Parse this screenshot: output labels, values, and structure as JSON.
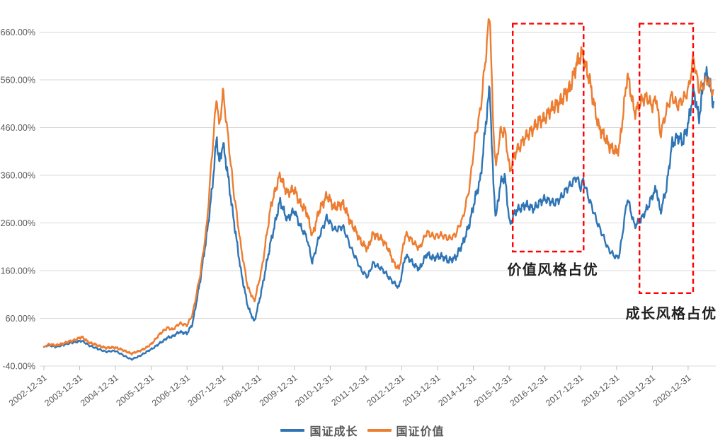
{
  "chart_data": {
    "type": "line",
    "title": "",
    "grid": true,
    "legend_position": "bottom",
    "x_axis": {
      "label": "",
      "t_unit": "years since 2002-12-31",
      "tick_positions": [
        0,
        1,
        2,
        3,
        4,
        5,
        6,
        7,
        8,
        9,
        10,
        11,
        12,
        13,
        14,
        15,
        16,
        17,
        18
      ],
      "tick_labels": [
        "2002-12-31",
        "2003-12-31",
        "2004-12-31",
        "2005-12-31",
        "2006-12-31",
        "2007-12-31",
        "2008-12-31",
        "2009-12-31",
        "2010-12-31",
        "2011-12-31",
        "2012-12-31",
        "2013-12-31",
        "2014-12-31",
        "2015-12-31",
        "2016-12-31",
        "2017-12-31",
        "2018-12-31",
        "2019-12-31",
        "2020-12-31"
      ],
      "range": [
        0,
        18.71
      ]
    },
    "y_axis": {
      "label": "",
      "unit": "%",
      "tick_values": [
        660,
        560,
        460,
        360,
        260,
        160,
        60,
        -40
      ],
      "tick_labels": [
        "660.00%",
        "560.00%",
        "460.00%",
        "360.00%",
        "260.00%",
        "160.00%",
        "60.00%",
        "-40.00%"
      ],
      "range": [
        -40,
        705
      ]
    },
    "series": [
      {
        "name": "国证成长",
        "color": "#2F75B5",
        "points": [
          [
            0,
            0
          ],
          [
            0.15,
            4
          ],
          [
            0.35,
            0
          ],
          [
            0.6,
            6
          ],
          [
            0.85,
            10
          ],
          [
            1.05,
            13
          ],
          [
            1.25,
            4
          ],
          [
            1.5,
            -4
          ],
          [
            1.75,
            -10
          ],
          [
            2.0,
            -8
          ],
          [
            2.25,
            -19
          ],
          [
            2.45,
            -26
          ],
          [
            2.65,
            -20
          ],
          [
            2.85,
            -11
          ],
          [
            3.0,
            -5
          ],
          [
            3.2,
            6
          ],
          [
            3.35,
            13
          ],
          [
            3.45,
            20
          ],
          [
            3.6,
            22
          ],
          [
            3.8,
            32
          ],
          [
            4.0,
            28
          ],
          [
            4.15,
            48
          ],
          [
            4.37,
            140
          ],
          [
            4.55,
            235
          ],
          [
            4.7,
            330
          ],
          [
            4.83,
            440
          ],
          [
            4.9,
            385
          ],
          [
            5.0,
            428
          ],
          [
            5.1,
            380
          ],
          [
            5.3,
            270
          ],
          [
            5.5,
            160
          ],
          [
            5.7,
            85
          ],
          [
            5.88,
            52
          ],
          [
            6.1,
            125
          ],
          [
            6.35,
            225
          ],
          [
            6.6,
            305
          ],
          [
            6.8,
            268
          ],
          [
            7.0,
            285
          ],
          [
            7.2,
            248
          ],
          [
            7.35,
            228
          ],
          [
            7.5,
            178
          ],
          [
            7.7,
            232
          ],
          [
            7.9,
            272
          ],
          [
            8.1,
            246
          ],
          [
            8.35,
            252
          ],
          [
            8.6,
            205
          ],
          [
            8.85,
            163
          ],
          [
            9.05,
            147
          ],
          [
            9.2,
            176
          ],
          [
            9.4,
            166
          ],
          [
            9.6,
            150
          ],
          [
            9.8,
            132
          ],
          [
            9.92,
            124
          ],
          [
            10.1,
            192
          ],
          [
            10.3,
            176
          ],
          [
            10.5,
            163
          ],
          [
            10.7,
            196
          ],
          [
            10.9,
            185
          ],
          [
            11.1,
            192
          ],
          [
            11.3,
            180
          ],
          [
            11.5,
            188
          ],
          [
            11.7,
            215
          ],
          [
            11.9,
            262
          ],
          [
            12.05,
            310
          ],
          [
            12.2,
            355
          ],
          [
            12.35,
            470
          ],
          [
            12.46,
            545
          ],
          [
            12.55,
            355
          ],
          [
            12.63,
            270
          ],
          [
            12.75,
            340
          ],
          [
            12.88,
            358
          ],
          [
            13.02,
            255
          ],
          [
            13.2,
            287
          ],
          [
            13.45,
            297
          ],
          [
            13.7,
            291
          ],
          [
            14.0,
            312
          ],
          [
            14.25,
            300
          ],
          [
            14.5,
            318
          ],
          [
            14.7,
            340
          ],
          [
            14.88,
            356
          ],
          [
            15.0,
            332
          ],
          [
            15.07,
            352
          ],
          [
            15.25,
            305
          ],
          [
            15.5,
            255
          ],
          [
            15.75,
            208
          ],
          [
            16.0,
            186
          ],
          [
            16.08,
            192
          ],
          [
            16.3,
            312
          ],
          [
            16.5,
            255
          ],
          [
            16.7,
            268
          ],
          [
            16.85,
            290
          ],
          [
            17.0,
            318
          ],
          [
            17.12,
            330
          ],
          [
            17.22,
            282
          ],
          [
            17.4,
            335
          ],
          [
            17.55,
            425
          ],
          [
            17.7,
            442
          ],
          [
            17.85,
            428
          ],
          [
            18.0,
            468
          ],
          [
            18.15,
            538
          ],
          [
            18.3,
            478
          ],
          [
            18.45,
            565
          ],
          [
            18.55,
            570
          ],
          [
            18.62,
            545
          ],
          [
            18.71,
            508
          ]
        ]
      },
      {
        "name": "国证价值",
        "color": "#ED7D31",
        "points": [
          [
            0,
            0
          ],
          [
            0.15,
            6
          ],
          [
            0.35,
            3
          ],
          [
            0.6,
            9
          ],
          [
            0.85,
            14
          ],
          [
            1.05,
            21
          ],
          [
            1.25,
            10
          ],
          [
            1.5,
            3
          ],
          [
            1.75,
            -2
          ],
          [
            2.0,
            -1
          ],
          [
            2.25,
            -8
          ],
          [
            2.45,
            -14
          ],
          [
            2.65,
            -9
          ],
          [
            2.85,
            -2
          ],
          [
            3.0,
            6
          ],
          [
            3.2,
            24
          ],
          [
            3.35,
            34
          ],
          [
            3.45,
            41
          ],
          [
            3.6,
            36
          ],
          [
            3.8,
            50
          ],
          [
            4.0,
            45
          ],
          [
            4.15,
            68
          ],
          [
            4.37,
            152
          ],
          [
            4.55,
            255
          ],
          [
            4.7,
            405
          ],
          [
            4.83,
            528
          ],
          [
            4.9,
            458
          ],
          [
            5.0,
            536
          ],
          [
            5.1,
            470
          ],
          [
            5.3,
            330
          ],
          [
            5.5,
            212
          ],
          [
            5.7,
            125
          ],
          [
            5.88,
            95
          ],
          [
            6.1,
            168
          ],
          [
            6.35,
            300
          ],
          [
            6.6,
            360
          ],
          [
            6.8,
            322
          ],
          [
            7.0,
            330
          ],
          [
            7.2,
            296
          ],
          [
            7.35,
            282
          ],
          [
            7.5,
            233
          ],
          [
            7.7,
            287
          ],
          [
            7.9,
            318
          ],
          [
            8.1,
            293
          ],
          [
            8.35,
            300
          ],
          [
            8.6,
            258
          ],
          [
            8.85,
            222
          ],
          [
            9.05,
            205
          ],
          [
            9.2,
            238
          ],
          [
            9.4,
            228
          ],
          [
            9.6,
            210
          ],
          [
            9.8,
            172
          ],
          [
            9.92,
            163
          ],
          [
            10.1,
            236
          ],
          [
            10.3,
            222
          ],
          [
            10.5,
            206
          ],
          [
            10.7,
            242
          ],
          [
            10.9,
            230
          ],
          [
            11.1,
            236
          ],
          [
            11.3,
            226
          ],
          [
            11.5,
            236
          ],
          [
            11.7,
            268
          ],
          [
            11.9,
            340
          ],
          [
            12.05,
            438
          ],
          [
            12.2,
            500
          ],
          [
            12.35,
            610
          ],
          [
            12.46,
            705
          ],
          [
            12.55,
            470
          ],
          [
            12.63,
            375
          ],
          [
            12.75,
            448
          ],
          [
            12.88,
            455
          ],
          [
            13.02,
            368
          ],
          [
            13.2,
            412
          ],
          [
            13.45,
            438
          ],
          [
            13.7,
            462
          ],
          [
            14.0,
            482
          ],
          [
            14.25,
            503
          ],
          [
            14.5,
            520
          ],
          [
            14.7,
            545
          ],
          [
            14.88,
            590
          ],
          [
            15.05,
            618
          ],
          [
            15.25,
            555
          ],
          [
            15.5,
            462
          ],
          [
            15.75,
            428
          ],
          [
            16.0,
            406
          ],
          [
            16.08,
            420
          ],
          [
            16.3,
            570
          ],
          [
            16.5,
            492
          ],
          [
            16.7,
            515
          ],
          [
            16.85,
            525
          ],
          [
            17.0,
            505
          ],
          [
            17.12,
            520
          ],
          [
            17.22,
            447
          ],
          [
            17.4,
            496
          ],
          [
            17.55,
            528
          ],
          [
            17.7,
            506
          ],
          [
            17.85,
            516
          ],
          [
            18.0,
            540
          ],
          [
            18.15,
            604
          ],
          [
            18.3,
            542
          ],
          [
            18.45,
            552
          ],
          [
            18.55,
            558
          ],
          [
            18.62,
            546
          ],
          [
            18.71,
            535
          ]
        ]
      }
    ],
    "annotations": [
      {
        "text": "价值风格占优",
        "t": 14.22,
        "value": 164,
        "box": {
          "t0": 13.1,
          "t1": 15.08,
          "v0": 200,
          "v1": 678
        }
      },
      {
        "text": "成长风格占优",
        "t": 17.53,
        "value": 73,
        "box": {
          "t0": 16.64,
          "t1": 18.14,
          "v0": 113,
          "v1": 678
        }
      }
    ],
    "colors": {
      "grid": "#D9D9D9",
      "tick": "#BFBFBF",
      "axis_text": "#595959",
      "annotation_text": "#1F1F1F",
      "highlight_box": "#FF0000"
    }
  },
  "legend": {
    "items": [
      {
        "label": "国证成长",
        "color": "#2F75B5"
      },
      {
        "label": "国证价值",
        "color": "#ED7D31"
      }
    ]
  }
}
